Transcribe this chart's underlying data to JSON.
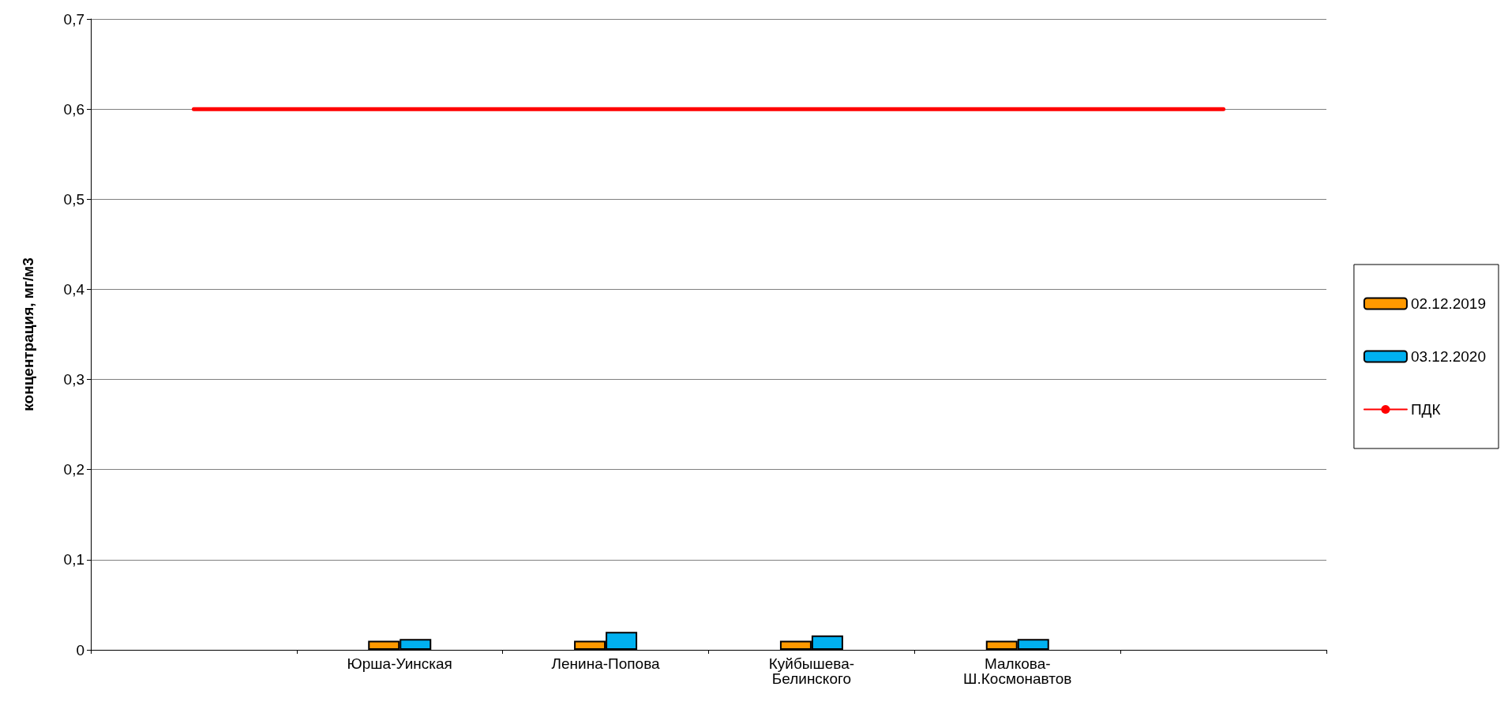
{
  "chart_data": {
    "type": "bar",
    "ylabel": "концентрация, мг/м3",
    "categories": [
      null,
      "Юрша-Уинская",
      "Ленина-Попова",
      "Куйбышева-\nБелинского",
      "Малкова-\nШ.Космонавтов",
      null
    ],
    "series": [
      {
        "name": "02.12.2019",
        "color": "#ff9900",
        "values": [
          null,
          0.01,
          0.01,
          0.01,
          0.01,
          null
        ]
      },
      {
        "name": "03.12.2020",
        "color": "#00b0f0",
        "values": [
          null,
          0.012,
          0.02,
          0.016,
          0.012,
          null
        ]
      },
      {
        "name": "ПДК",
        "type": "line",
        "color": "#ff0000",
        "marker": "none",
        "line_style": "solid",
        "values": [
          0.6,
          0.6,
          0.6,
          0.6,
          0.6,
          0.6
        ]
      }
    ],
    "ylim": [
      0,
      0.7
    ],
    "yticks": [
      0,
      {
        "value": 0.1,
        "label": "0,1"
      },
      {
        "value": 0.2,
        "label": "0,2"
      },
      {
        "value": 0.3,
        "label": "0,3"
      },
      {
        "value": 0.4,
        "label": "0,4"
      },
      {
        "value": 0.5,
        "label": "0,5"
      },
      {
        "value": 0.6,
        "label": "0,6"
      },
      {
        "value": 0.7,
        "label": "0,7"
      }
    ],
    "grid": "y",
    "legend": "right"
  }
}
